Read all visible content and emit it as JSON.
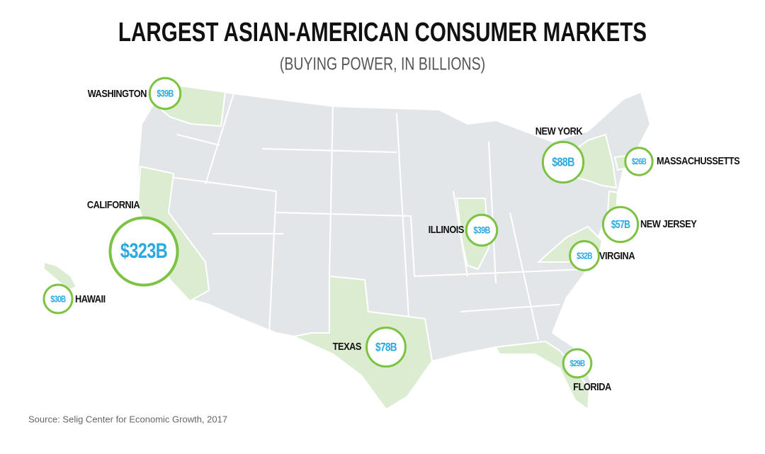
{
  "title": "LARGEST ASIAN-AMERICAN CONSUMER MARKETS",
  "subtitle": "(BUYING POWER, IN BILLIONS)",
  "markets": [
    {
      "state": "WASHINGTON",
      "value": 39,
      "value_label": "$39B"
    },
    {
      "state": "CALIFORNIA",
      "value": 323,
      "value_label": "$323B"
    },
    {
      "state": "HAWAII",
      "value": 30,
      "value_label": "$30B"
    },
    {
      "state": "TEXAS",
      "value": 78,
      "value_label": "$78B"
    },
    {
      "state": "ILLINOIS",
      "value": 39,
      "value_label": "$39B"
    },
    {
      "state": "NEW YORK",
      "value": 88,
      "value_label": "$88B"
    },
    {
      "state": "MASSACHUSSETTS",
      "value": 26,
      "value_label": "$26B"
    },
    {
      "state": "NEW JERSEY",
      "value": 57,
      "value_label": "$57B"
    },
    {
      "state": "VIRGINA",
      "value": 32,
      "value_label": "$32B"
    },
    {
      "state": "FLORIDA",
      "value": 29,
      "value_label": "$29B"
    }
  ],
  "source": "Source: Selig Center for Economic Growth, 2017"
}
